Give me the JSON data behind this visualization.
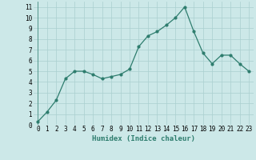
{
  "xlabel": "Humidex (Indice chaleur)",
  "ylabel": "",
  "x": [
    0,
    1,
    2,
    3,
    4,
    5,
    6,
    7,
    8,
    9,
    10,
    11,
    12,
    13,
    14,
    15,
    16,
    17,
    18,
    19,
    20,
    21,
    22,
    23
  ],
  "y": [
    0.3,
    1.2,
    2.3,
    4.3,
    5.0,
    5.0,
    4.7,
    4.3,
    4.5,
    4.7,
    5.2,
    7.3,
    8.3,
    8.7,
    9.3,
    10.0,
    11.0,
    8.7,
    6.7,
    5.7,
    6.5,
    6.5,
    5.7,
    5.0
  ],
  "line_color": "#2e7d6e",
  "bg_color": "#cce8e8",
  "grid_color": "#aacfcf",
  "xlim": [
    -0.5,
    23.5
  ],
  "ylim": [
    0,
    11.5
  ],
  "yticks": [
    0,
    1,
    2,
    3,
    4,
    5,
    6,
    7,
    8,
    9,
    10,
    11
  ],
  "xticks": [
    0,
    1,
    2,
    3,
    4,
    5,
    6,
    7,
    8,
    9,
    10,
    11,
    12,
    13,
    14,
    15,
    16,
    17,
    18,
    19,
    20,
    21,
    22,
    23
  ],
  "marker_size": 2.0,
  "line_width": 0.9,
  "xlabel_fontsize": 6.5,
  "tick_fontsize": 5.5
}
